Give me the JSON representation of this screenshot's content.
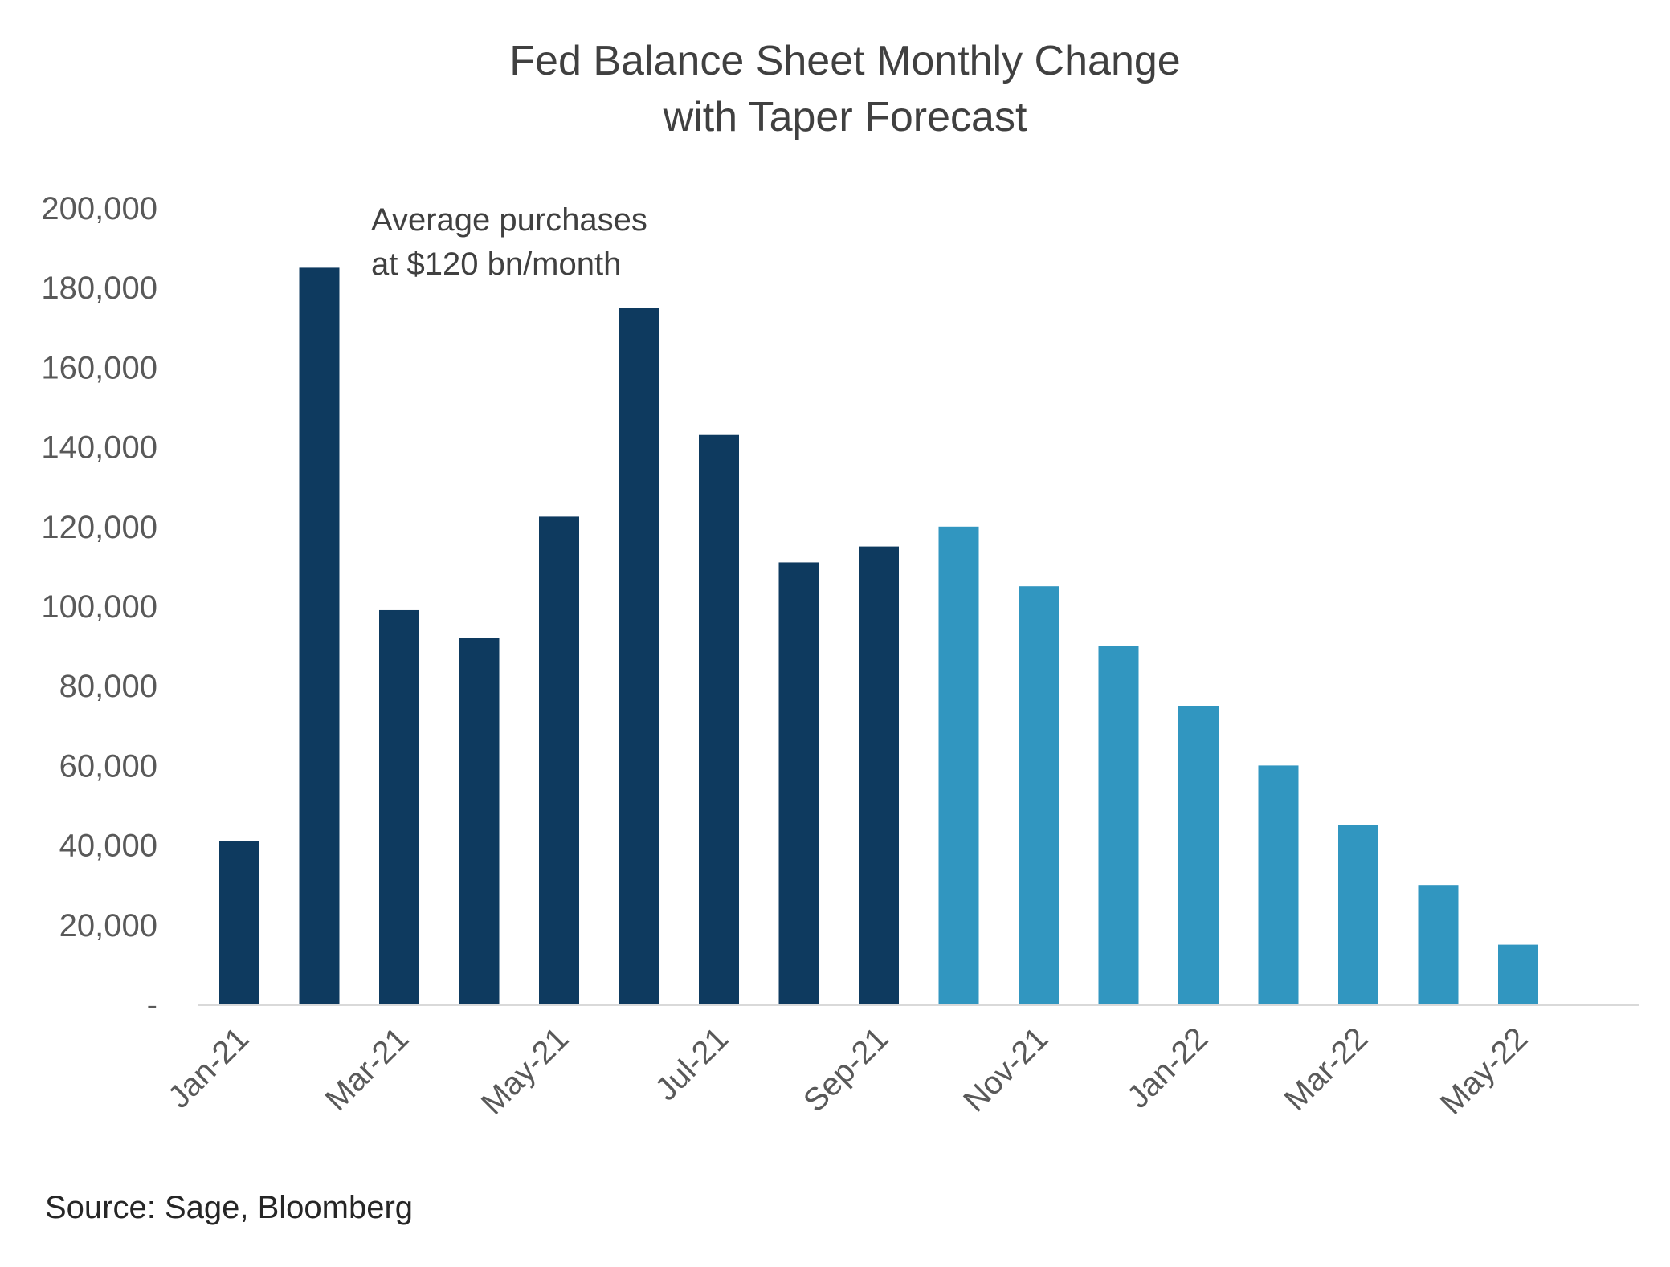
{
  "chart_data": {
    "type": "bar",
    "title_lines": [
      "Fed Balance Sheet Monthly Change",
      "with Taper Forecast"
    ],
    "xlabel": "",
    "ylabel": "",
    "categories": [
      "Jan-21",
      "Feb-21",
      "Mar-21",
      "Apr-21",
      "May-21",
      "Jun-21",
      "Jul-21",
      "Aug-21",
      "Sep-21",
      "Oct-21",
      "Nov-21",
      "Dec-21",
      "Jan-22",
      "Feb-22",
      "Mar-22",
      "Apr-22",
      "May-22"
    ],
    "x_tick_labels": [
      "Jan-21",
      "Mar-21",
      "May-21",
      "Jul-21",
      "Sep-21",
      "Nov-21",
      "Jan-22",
      "Mar-22",
      "May-22"
    ],
    "series": [
      {
        "kind": "actual",
        "color": "#0E3A5F",
        "values": [
          41000,
          185000,
          99000,
          92000,
          122500,
          175000,
          143000,
          111000,
          115000,
          null,
          null,
          null,
          null,
          null,
          null,
          null,
          null
        ]
      },
      {
        "kind": "forecast",
        "color": "#3196C0",
        "values": [
          null,
          null,
          null,
          null,
          null,
          null,
          null,
          null,
          null,
          120000,
          105000,
          90000,
          75000,
          60000,
          45000,
          30000,
          15000
        ]
      }
    ],
    "ylim": [
      0,
      200000
    ],
    "y_ticks": [
      0,
      20000,
      40000,
      60000,
      80000,
      100000,
      120000,
      140000,
      160000,
      180000,
      200000
    ],
    "y_tick_labels": [
      "-",
      "20,000",
      "40,000",
      "60,000",
      "80,000",
      "100,000",
      "120,000",
      "140,000",
      "160,000",
      "180,000",
      "200,000"
    ],
    "annotation_lines": [
      "Average purchases",
      "at $120 bn/month"
    ],
    "grid": false,
    "legend": "none",
    "axis_color": "#D9D9D9"
  },
  "source": "Source: Sage, Bloomberg"
}
